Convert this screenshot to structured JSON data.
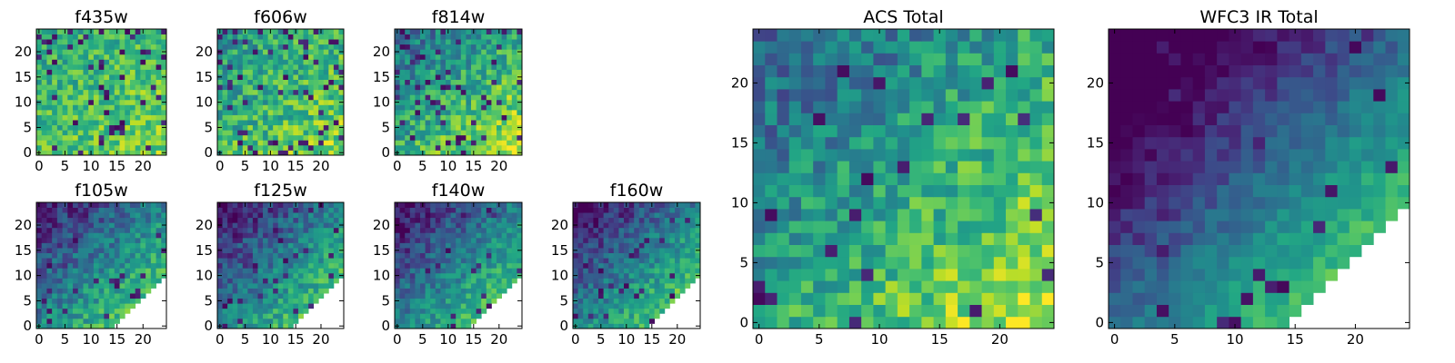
{
  "colormap": "viridis",
  "chart_data": [
    {
      "type": "heatmap",
      "title": "f435w",
      "grid_size": 25,
      "xlim": [
        0,
        24
      ],
      "ylim": [
        0,
        24
      ],
      "xticks": [
        "0",
        "5",
        "10",
        "15",
        "20"
      ],
      "yticks": [
        "0",
        "5",
        "10",
        "15",
        "20"
      ],
      "pattern": {
        "base": 0.7,
        "gradient": 0.1,
        "noise": 0.35,
        "dark_fraction": 0.07,
        "mask": "none"
      }
    },
    {
      "type": "heatmap",
      "title": "f606w",
      "grid_size": 25,
      "xlim": [
        0,
        24
      ],
      "ylim": [
        0,
        24
      ],
      "xticks": [
        "0",
        "5",
        "10",
        "15",
        "20"
      ],
      "yticks": [
        "0",
        "5",
        "10",
        "15",
        "20"
      ],
      "pattern": {
        "base": 0.66,
        "gradient": 0.14,
        "noise": 0.42,
        "dark_fraction": 0.1,
        "mask": "none"
      }
    },
    {
      "type": "heatmap",
      "title": "f814w",
      "grid_size": 25,
      "xlim": [
        0,
        24
      ],
      "ylim": [
        0,
        24
      ],
      "xticks": [
        "0",
        "5",
        "10",
        "15",
        "20"
      ],
      "yticks": [
        "0",
        "5",
        "10",
        "15",
        "20"
      ],
      "pattern": {
        "base": 0.62,
        "gradient": 0.28,
        "noise": 0.4,
        "dark_fraction": 0.08,
        "mask": "none"
      }
    },
    {
      "type": "heatmap",
      "title": "f105w",
      "grid_size": 25,
      "xlim": [
        0,
        24
      ],
      "ylim": [
        0,
        24
      ],
      "xticks": [
        "0",
        "5",
        "10",
        "15",
        "20"
      ],
      "yticks": [
        "0",
        "5",
        "10",
        "15",
        "20"
      ],
      "pattern": {
        "base": 0.46,
        "gradient": 0.4,
        "noise": 0.32,
        "dark_fraction": 0.05,
        "mask": "corner"
      }
    },
    {
      "type": "heatmap",
      "title": "f125w",
      "grid_size": 25,
      "xlim": [
        0,
        24
      ],
      "ylim": [
        0,
        24
      ],
      "xticks": [
        "0",
        "5",
        "10",
        "15",
        "20"
      ],
      "yticks": [
        "0",
        "5",
        "10",
        "15",
        "20"
      ],
      "pattern": {
        "base": 0.44,
        "gradient": 0.42,
        "noise": 0.32,
        "dark_fraction": 0.05,
        "mask": "corner"
      }
    },
    {
      "type": "heatmap",
      "title": "f140w",
      "grid_size": 25,
      "xlim": [
        0,
        24
      ],
      "ylim": [
        0,
        24
      ],
      "xticks": [
        "0",
        "5",
        "10",
        "15",
        "20"
      ],
      "yticks": [
        "0",
        "5",
        "10",
        "15",
        "20"
      ],
      "pattern": {
        "base": 0.44,
        "gradient": 0.44,
        "noise": 0.3,
        "dark_fraction": 0.04,
        "mask": "corner"
      }
    },
    {
      "type": "heatmap",
      "title": "f160w",
      "grid_size": 25,
      "xlim": [
        0,
        24
      ],
      "ylim": [
        0,
        24
      ],
      "xticks": [
        "0",
        "5",
        "10",
        "15",
        "20"
      ],
      "yticks": [
        "0",
        "5",
        "10",
        "15",
        "20"
      ],
      "pattern": {
        "base": 0.44,
        "gradient": 0.46,
        "noise": 0.3,
        "dark_fraction": 0.05,
        "mask": "corner"
      }
    },
    {
      "type": "heatmap",
      "title": "ACS Total",
      "grid_size": 25,
      "xlim": [
        0,
        24
      ],
      "ylim": [
        0,
        24
      ],
      "xticks": [
        "0",
        "5",
        "10",
        "15",
        "20"
      ],
      "yticks": [
        "0",
        "5",
        "10",
        "15",
        "20"
      ],
      "pattern": {
        "base": 0.6,
        "gradient": 0.32,
        "noise": 0.36,
        "dark_fraction": 0.04,
        "mask": "none"
      }
    },
    {
      "type": "heatmap",
      "title": "WFC3 IR Total",
      "grid_size": 25,
      "xlim": [
        0,
        24
      ],
      "ylim": [
        0,
        24
      ],
      "xticks": [
        "0",
        "5",
        "10",
        "15",
        "20"
      ],
      "yticks": [
        "0",
        "5",
        "10",
        "15",
        "20"
      ],
      "pattern": {
        "base": 0.34,
        "gradient": 0.62,
        "noise": 0.18,
        "dark_fraction": 0.04,
        "mask": "corner"
      }
    }
  ]
}
